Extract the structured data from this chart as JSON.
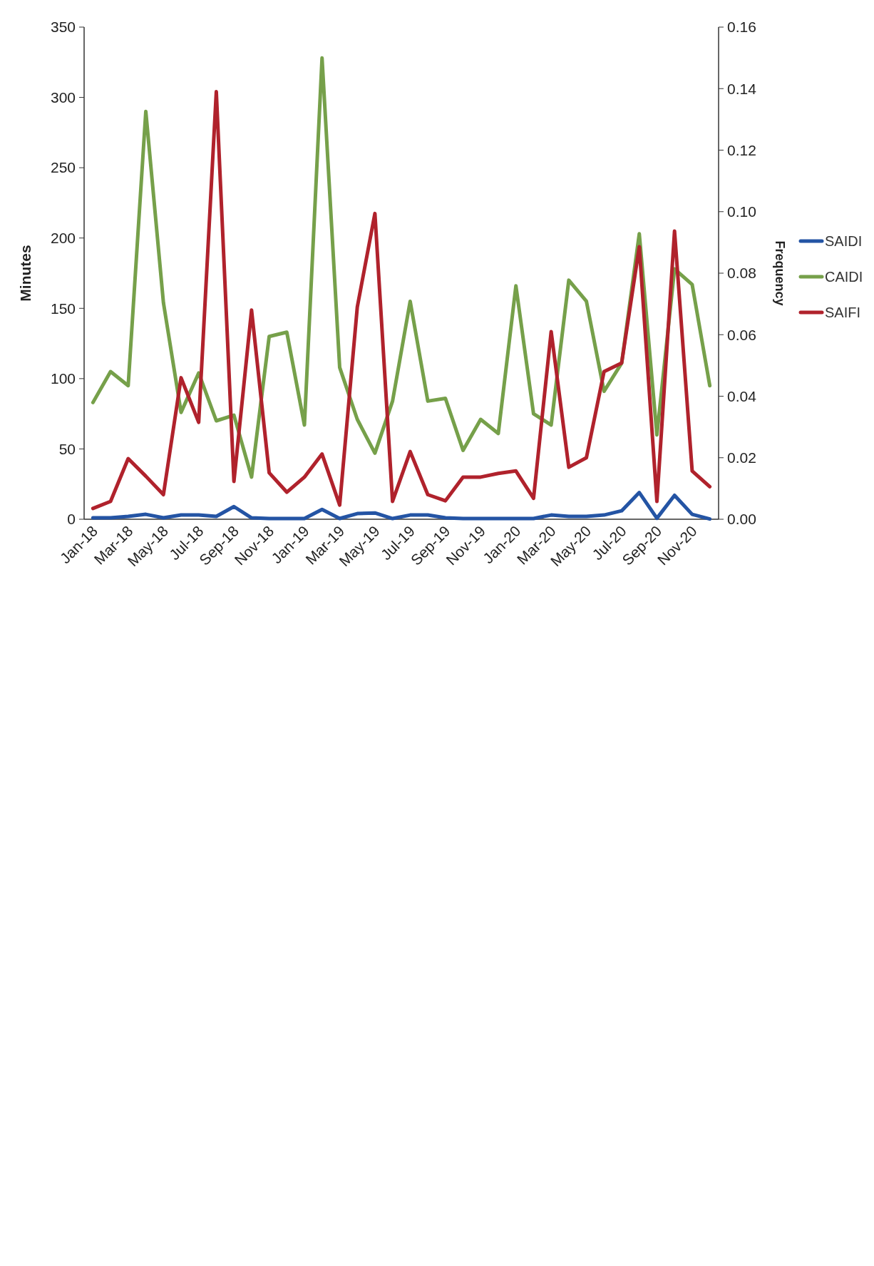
{
  "chart_data": {
    "type": "line",
    "ylabel": "Minutes",
    "y2label": "Frequency",
    "categories": [
      "Jan-18",
      null,
      "Mar-18",
      null,
      "May-18",
      null,
      "Jul-18",
      null,
      "Sep-18",
      null,
      "Nov-18",
      null,
      "Jan-19",
      null,
      "Mar-19",
      null,
      "May-19",
      null,
      "Jul-19",
      null,
      "Sep-19",
      null,
      "Nov-19",
      null,
      "Jan-20",
      null,
      "Mar-20",
      null,
      "May-20",
      null,
      "Jul-20",
      null,
      "Sep-20",
      null,
      "Nov-20",
      null
    ],
    "ylim": [
      0,
      350
    ],
    "yticks": [
      0,
      50,
      100,
      150,
      200,
      250,
      300,
      350
    ],
    "y2lim": [
      0,
      0.16
    ],
    "y2ticks": [
      {
        "value": 0,
        "label": "0.00"
      },
      {
        "value": 0.02,
        "label": "0.02"
      },
      {
        "value": 0.04,
        "label": "0.04"
      },
      {
        "value": 0.06,
        "label": "0.06"
      },
      {
        "value": 0.08,
        "label": "0.08"
      },
      {
        "value": 0.1,
        "label": "0.10"
      },
      {
        "value": 0.12,
        "label": "0.12"
      },
      {
        "value": 0.14,
        "label": "0.14"
      },
      {
        "value": 0.16,
        "label": "0.16"
      }
    ],
    "grid": false,
    "legend": "right",
    "marker": "none",
    "line_style": "solid",
    "series": [
      {
        "name": "SAIDI",
        "color": "#2454a4",
        "values": [
          1,
          1,
          2,
          3.5,
          1,
          3,
          3,
          2,
          9,
          1,
          0.5,
          0.5,
          0.5,
          7,
          0.5,
          4,
          4.5,
          0.5,
          3,
          3,
          1,
          0.5,
          0.5,
          0.5,
          0.5,
          0.5,
          3,
          2,
          2,
          3,
          6,
          19,
          0.7,
          17,
          3.5,
          0.2
        ]
      },
      {
        "name": "CAIDI",
        "color": "#76a04a",
        "values": [
          83,
          105,
          95,
          290,
          154,
          76,
          104,
          70,
          74,
          30,
          130,
          133,
          67,
          328,
          108,
          71,
          47,
          84,
          155,
          84,
          86,
          49,
          71,
          61,
          166,
          75,
          67,
          170,
          155,
          91,
          111,
          203,
          60,
          178,
          167,
          95
        ]
      },
      {
        "name": "SAIFI",
        "color": "#b0222c",
        "axis": "y2",
        "values": [
          0.0035,
          0.0058,
          0.0197,
          0.014,
          0.008,
          0.046,
          0.0315,
          0.139,
          0.0123,
          0.068,
          0.0151,
          0.0088,
          0.0137,
          0.0212,
          0.0046,
          0.069,
          0.0994,
          0.0058,
          0.022,
          0.008,
          0.006,
          0.0137,
          0.0137,
          0.0149,
          0.0157,
          0.0068,
          0.061,
          0.0169,
          0.02,
          0.048,
          0.0508,
          0.0886,
          0.0058,
          0.0937,
          0.0157,
          0.0106
        ]
      }
    ]
  }
}
